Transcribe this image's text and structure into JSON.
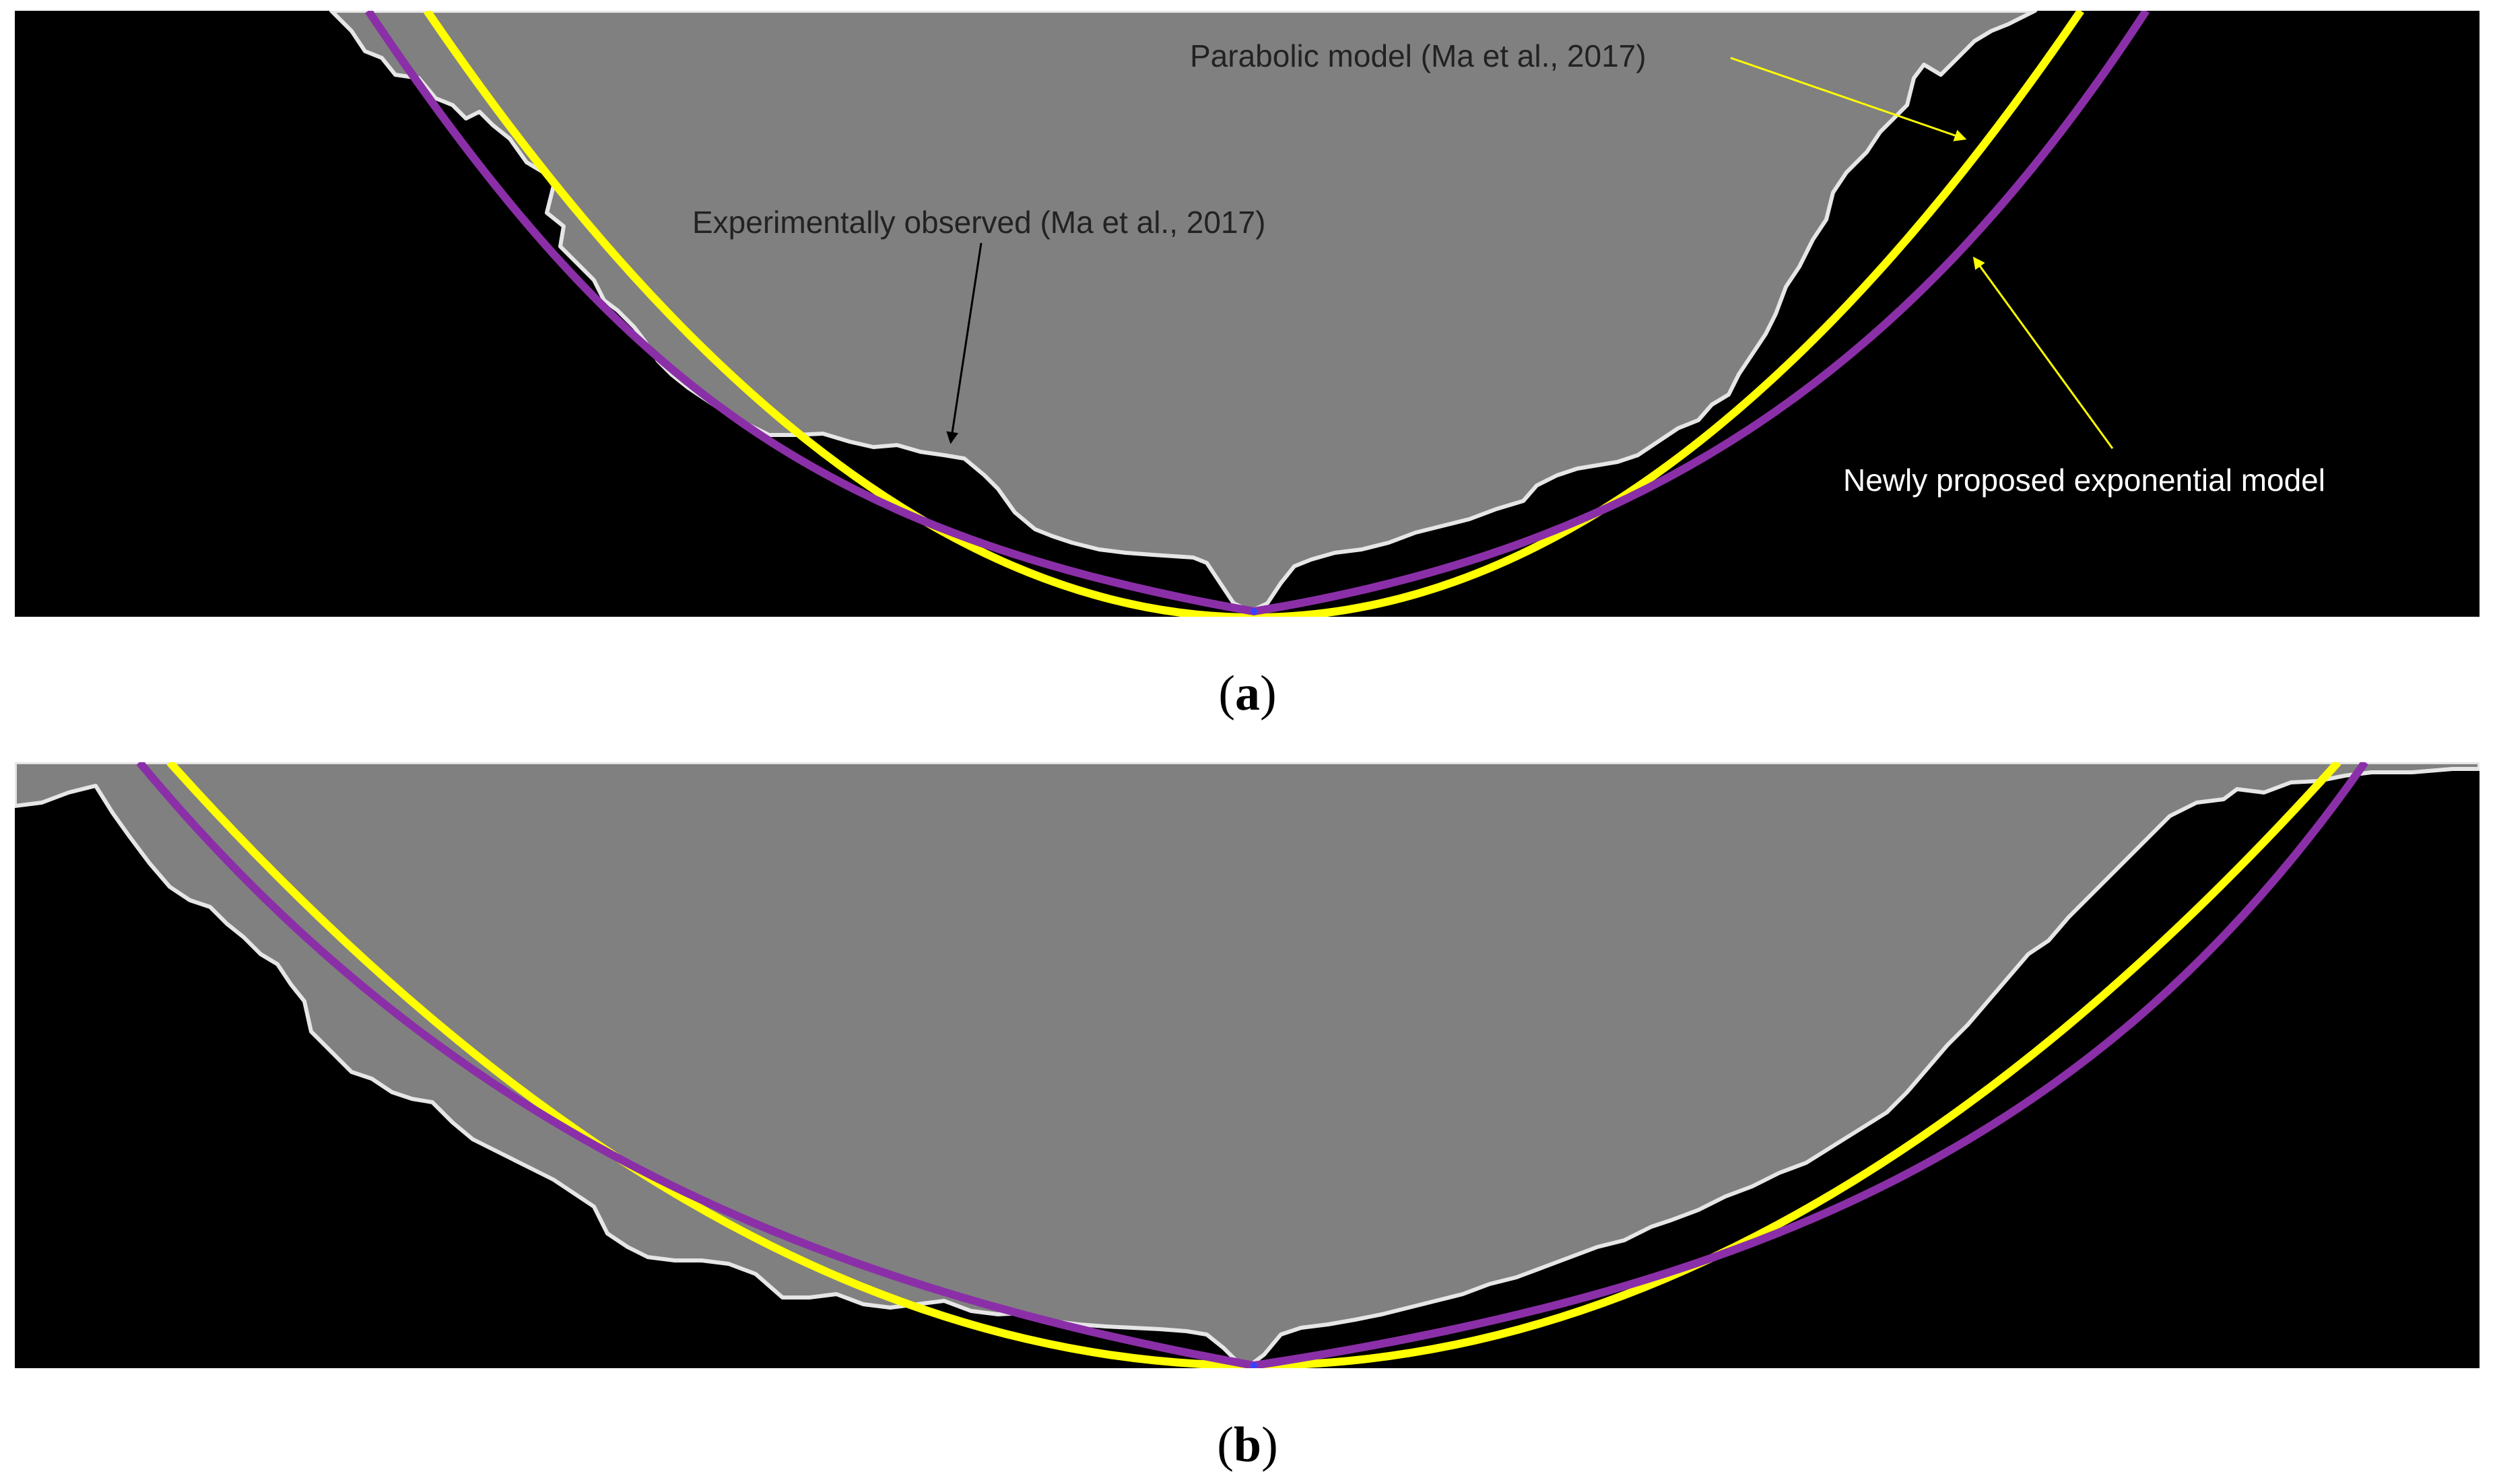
{
  "figure": {
    "panels": [
      {
        "id": "a",
        "caption_open": "(",
        "caption_letter": "a",
        "caption_close": ")",
        "annotations": {
          "parabolic": "Parabolic model (Ma et al., 2017)",
          "experimental": "Experimentally observed (Ma et al., 2017)",
          "exponential": "Newly proposed exponential model"
        }
      },
      {
        "id": "b",
        "caption_open": "(",
        "caption_letter": "b",
        "caption_close": ")"
      }
    ],
    "colors": {
      "background": "#000000",
      "observed_region": "#808080",
      "observed_edge": "#e6e6e6",
      "parabolic_model": "#ffff00",
      "exponential_model": "#8b2fa8",
      "arrow_yellow": "#ffff00",
      "arrow_black": "#000000",
      "text_dark": "#222222",
      "text_light": "#ffffff"
    }
  }
}
